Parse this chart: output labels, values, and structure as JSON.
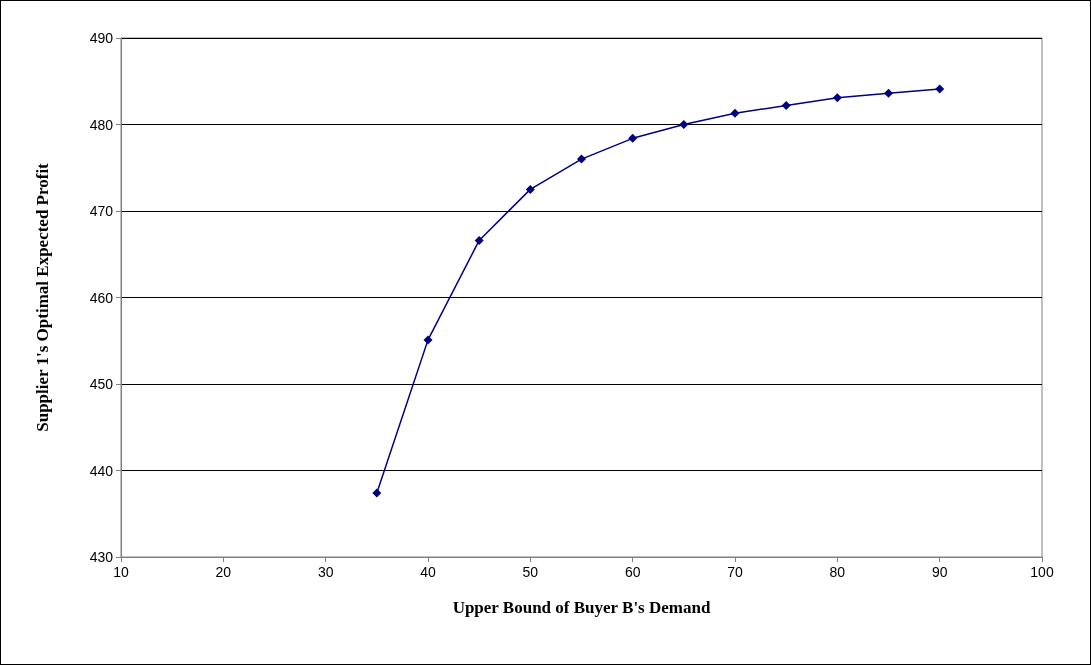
{
  "chart_data": {
    "type": "line",
    "xlabel": "Upper Bound of Buyer B's Demand",
    "ylabel": "Supplier 1's Optimal Expected Profit",
    "x": [
      35,
      40,
      45,
      50,
      55,
      60,
      65,
      70,
      75,
      80,
      85,
      90
    ],
    "series": [
      {
        "color": "#000080",
        "values": [
          437.4,
          455.1,
          466.6,
          472.5,
          476.0,
          478.4,
          480.0,
          481.3,
          482.2,
          483.1,
          483.6,
          484.1
        ]
      }
    ],
    "xlim": [
      10,
      100
    ],
    "xticks": [
      10,
      20,
      30,
      40,
      50,
      60,
      70,
      80,
      90,
      100
    ],
    "ylim": [
      430,
      490
    ],
    "yticks": [
      430,
      440,
      450,
      460,
      470,
      480,
      490
    ],
    "grid": "y",
    "marker": "diamond",
    "line_style": "solid"
  }
}
